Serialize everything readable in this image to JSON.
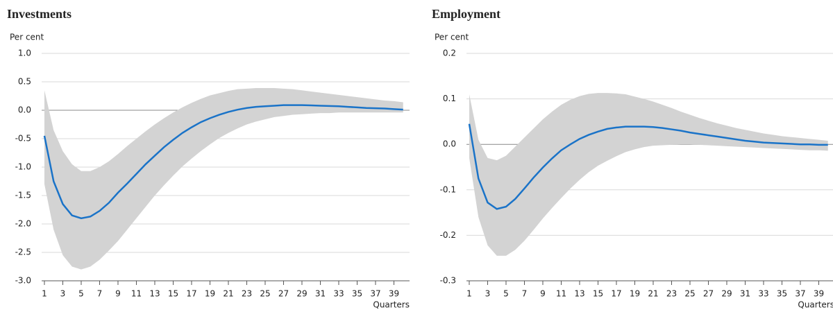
{
  "chart_data": [
    {
      "type": "line",
      "title": "Investments",
      "ylabel": "Per cent",
      "xlabel": "Quarters",
      "x": [
        1,
        2,
        3,
        4,
        5,
        6,
        7,
        8,
        9,
        10,
        11,
        12,
        13,
        14,
        15,
        16,
        17,
        18,
        19,
        20,
        21,
        22,
        23,
        24,
        25,
        26,
        27,
        28,
        29,
        30,
        31,
        32,
        33,
        34,
        35,
        36,
        37,
        38,
        39,
        40
      ],
      "values": [
        -0.45,
        -1.25,
        -1.65,
        -1.85,
        -1.9,
        -1.87,
        -1.77,
        -1.63,
        -1.45,
        -1.29,
        -1.12,
        -0.95,
        -0.8,
        -0.65,
        -0.52,
        -0.4,
        -0.3,
        -0.21,
        -0.14,
        -0.08,
        -0.03,
        0.01,
        0.04,
        0.06,
        0.07,
        0.08,
        0.09,
        0.09,
        0.09,
        0.085,
        0.08,
        0.075,
        0.07,
        0.06,
        0.05,
        0.04,
        0.035,
        0.03,
        0.02,
        0.01
      ],
      "upper": [
        0.35,
        -0.35,
        -0.72,
        -0.95,
        -1.07,
        -1.07,
        -1.0,
        -0.9,
        -0.77,
        -0.63,
        -0.5,
        -0.37,
        -0.25,
        -0.14,
        -0.04,
        0.05,
        0.13,
        0.2,
        0.26,
        0.3,
        0.34,
        0.37,
        0.38,
        0.39,
        0.39,
        0.39,
        0.38,
        0.37,
        0.35,
        0.33,
        0.31,
        0.29,
        0.27,
        0.25,
        0.23,
        0.21,
        0.19,
        0.17,
        0.16,
        0.14
      ],
      "lower": [
        -1.3,
        -2.1,
        -2.55,
        -2.75,
        -2.8,
        -2.75,
        -2.63,
        -2.47,
        -2.3,
        -2.1,
        -1.9,
        -1.7,
        -1.5,
        -1.32,
        -1.15,
        -0.99,
        -0.85,
        -0.72,
        -0.6,
        -0.49,
        -0.4,
        -0.32,
        -0.25,
        -0.2,
        -0.16,
        -0.12,
        -0.1,
        -0.08,
        -0.07,
        -0.06,
        -0.05,
        -0.05,
        -0.04,
        -0.04,
        -0.04,
        -0.04,
        -0.04,
        -0.04,
        -0.04,
        -0.04
      ],
      "color": "#1a73c8",
      "band_color": "#d3d3d3",
      "xlim": [
        0.7,
        40.7
      ],
      "xticks": [
        1,
        3,
        5,
        7,
        9,
        11,
        13,
        15,
        17,
        19,
        21,
        23,
        25,
        27,
        29,
        31,
        33,
        35,
        37,
        39
      ],
      "ylim": [
        -3,
        1
      ],
      "yticks": [
        {
          "value": 1,
          "label": "1.0"
        },
        0.5,
        {
          "value": 0,
          "label": "0.0"
        },
        -0.5,
        {
          "value": -1,
          "label": "-1.0"
        },
        -1.5,
        {
          "value": -2,
          "label": "-2.0"
        },
        -2.5,
        {
          "value": -3,
          "label": "-3.0"
        }
      ],
      "grid": true
    },
    {
      "type": "line",
      "title": "Employment",
      "ylabel": "Per cent",
      "xlabel": "Quarters",
      "x": [
        1,
        2,
        3,
        4,
        5,
        6,
        7,
        8,
        9,
        10,
        11,
        12,
        13,
        14,
        15,
        16,
        17,
        18,
        19,
        20,
        21,
        22,
        23,
        24,
        25,
        26,
        27,
        28,
        29,
        30,
        31,
        32,
        33,
        34,
        35,
        36,
        37,
        38,
        39,
        40
      ],
      "values": [
        0.045,
        -0.075,
        -0.128,
        -0.142,
        -0.137,
        -0.12,
        -0.097,
        -0.073,
        -0.051,
        -0.031,
        -0.013,
        0.0,
        0.012,
        0.021,
        0.028,
        0.034,
        0.037,
        0.039,
        0.039,
        0.039,
        0.038,
        0.036,
        0.033,
        0.03,
        0.026,
        0.023,
        0.02,
        0.017,
        0.014,
        0.011,
        0.008,
        0.006,
        0.004,
        0.003,
        0.002,
        0.001,
        0.0,
        0.0,
        -0.001,
        -0.001
      ],
      "upper": [
        0.11,
        0.01,
        -0.03,
        -0.035,
        -0.025,
        -0.005,
        0.015,
        0.035,
        0.055,
        0.072,
        0.087,
        0.098,
        0.106,
        0.111,
        0.113,
        0.113,
        0.112,
        0.11,
        0.105,
        0.1,
        0.094,
        0.087,
        0.08,
        0.072,
        0.065,
        0.058,
        0.052,
        0.046,
        0.041,
        0.036,
        0.032,
        0.028,
        0.024,
        0.021,
        0.018,
        0.016,
        0.014,
        0.012,
        0.01,
        0.008
      ],
      "lower": [
        -0.03,
        -0.16,
        -0.222,
        -0.245,
        -0.245,
        -0.232,
        -0.212,
        -0.188,
        -0.163,
        -0.14,
        -0.118,
        -0.097,
        -0.078,
        -0.061,
        -0.047,
        -0.036,
        -0.026,
        -0.017,
        -0.011,
        -0.006,
        -0.003,
        -0.002,
        -0.001,
        0,
        0,
        -0.001,
        -0.002,
        -0.003,
        -0.004,
        -0.005,
        -0.006,
        -0.007,
        -0.008,
        -0.009,
        -0.01,
        -0.011,
        -0.012,
        -0.013,
        -0.013,
        -0.014
      ],
      "color": "#1a73c8",
      "band_color": "#d3d3d3",
      "xlim": [
        0.7,
        40.7
      ],
      "xticks": [
        1,
        3,
        5,
        7,
        9,
        11,
        13,
        15,
        17,
        19,
        21,
        23,
        25,
        27,
        29,
        31,
        33,
        35,
        37,
        39
      ],
      "ylim": [
        -0.3,
        0.2
      ],
      "yticks": [
        0.2,
        0.1,
        {
          "value": 0,
          "label": "0.0"
        },
        -0.1,
        -0.2,
        -0.3
      ],
      "grid": true
    }
  ]
}
